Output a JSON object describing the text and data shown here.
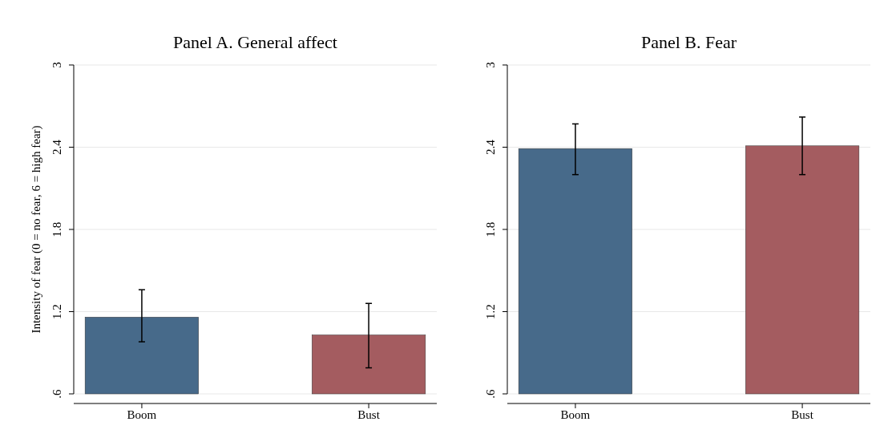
{
  "chart_data": [
    {
      "type": "bar",
      "title": "Panel A. General affect",
      "ylabel": "Intensity of fear (0 = no fear, 6 = high fear)",
      "categories": [
        "Boom",
        "Bust"
      ],
      "values": [
        1.16,
        1.03
      ],
      "colors": [
        "#476a8a",
        "#a45c60"
      ],
      "errors": [
        [
          0.98,
          1.36
        ],
        [
          0.79,
          1.26
        ]
      ],
      "ylim": [
        0.6,
        3
      ],
      "yticks": [
        {
          "value": 0.6,
          "label": ".6"
        },
        1.2,
        1.8,
        2.4,
        3
      ],
      "grid": "y"
    },
    {
      "type": "bar",
      "title": "Panel B. Fear",
      "categories": [
        "Boom",
        "Bust"
      ],
      "values": [
        2.39,
        2.41
      ],
      "colors": [
        "#476a8a",
        "#a45c60"
      ],
      "errors": [
        [
          2.2,
          2.57
        ],
        [
          2.2,
          2.62
        ]
      ],
      "ylim": [
        0.6,
        3
      ],
      "yticks": [
        {
          "value": 0.6,
          "label": ".6"
        },
        1.2,
        1.8,
        2.4,
        3
      ],
      "grid": "y"
    }
  ]
}
